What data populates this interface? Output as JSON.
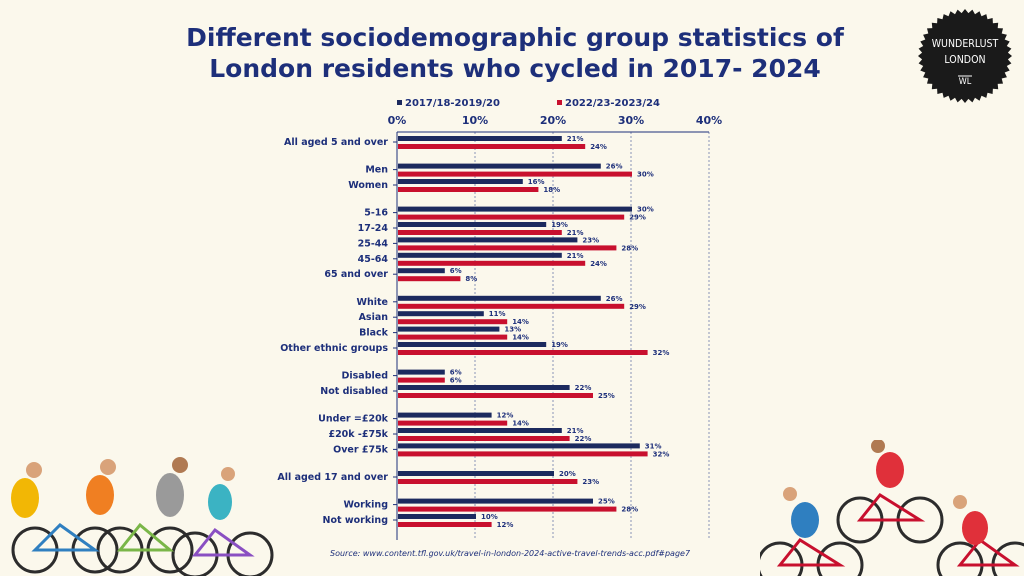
{
  "title_line1": "Different sociodemographic group statistics of",
  "title_line2": "London residents who cycled in 2017- 2024",
  "logo": {
    "line1": "WUNDERLUST",
    "line2": "LONDON",
    "mark": "WL"
  },
  "source": "Source: www.content.tfl.gov.uk/travel-in-london-2024-active-travel-trends-acc.pdf#page7",
  "chart_data": {
    "type": "bar",
    "orientation": "horizontal",
    "x_ticks": [
      "0%",
      "10%",
      "20%",
      "30%",
      "40%"
    ],
    "xlim": [
      0,
      40
    ],
    "legend_position": "top",
    "categories": [
      "All aged 5 and over",
      "Men",
      "Women",
      "5-16",
      "17-24",
      "25-44",
      "45-64",
      "65 and over",
      "White",
      "Asian",
      "Black",
      "Other ethnic groups",
      "Disabled",
      "Not disabled",
      "Under =£20k",
      "£20k -£75k",
      "Over £75k",
      "All aged 17 and over",
      "Working",
      "Not working"
    ],
    "groups": [
      [
        0
      ],
      [
        1,
        2
      ],
      [
        3,
        4,
        5,
        6,
        7
      ],
      [
        8,
        9,
        10,
        11
      ],
      [
        12,
        13
      ],
      [
        14,
        15,
        16
      ],
      [
        17
      ],
      [
        18,
        19
      ]
    ],
    "series": [
      {
        "name": "2017/18-2019/20",
        "color": "#1c2a5e",
        "values": [
          21,
          26,
          16,
          30,
          19,
          23,
          21,
          6,
          26,
          11,
          13,
          19,
          6,
          22,
          12,
          21,
          31,
          20,
          25,
          10
        ],
        "labels": [
          "21%",
          "26%",
          "16%",
          "30%",
          "19%",
          "23%",
          "21%",
          "6%",
          "26%",
          "11%",
          "13%",
          "19%",
          "6%",
          "22%",
          "12%",
          "21%",
          "31%",
          "20%",
          "25%",
          "10%"
        ]
      },
      {
        "name": "2022/23-2023/24",
        "color": "#c8102e",
        "values": [
          24,
          30,
          18,
          29,
          21,
          28,
          24,
          8,
          29,
          14,
          14,
          32,
          6,
          25,
          14,
          22,
          32,
          23,
          28,
          12
        ],
        "labels": [
          "24%",
          "30%",
          "18%",
          "29%",
          "21%",
          "28%",
          "24%",
          "8%",
          "29%",
          "14%",
          "14%",
          "32%",
          "6%",
          "25%",
          "14%",
          "22%",
          "32%",
          "23%",
          "28%",
          "12%"
        ]
      }
    ]
  }
}
